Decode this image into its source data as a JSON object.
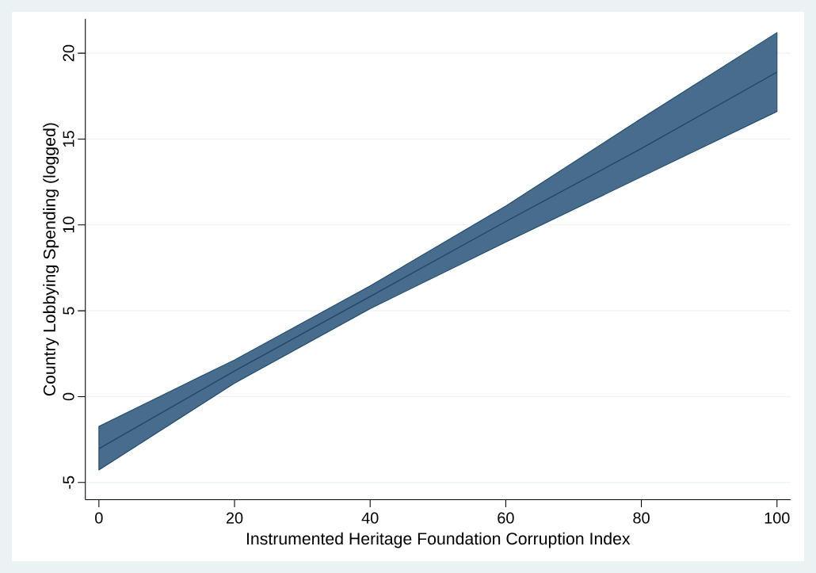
{
  "chart_data": {
    "type": "line",
    "xlabel": "Instrumented Heritage Foundation Corruption Index",
    "ylabel": "Country Lobbying Spending (logged)",
    "x": [
      0,
      20,
      40,
      60,
      80,
      100
    ],
    "series": [
      {
        "color": "#1a476f",
        "values": [
          -3.03,
          1.49,
          5.83,
          10.2,
          14.45,
          18.9
        ],
        "lower": [
          -4.27,
          0.78,
          5.12,
          9.0,
          12.8,
          16.6
        ],
        "upper": [
          -1.73,
          2.14,
          6.45,
          11.1,
          16.2,
          21.2
        ]
      }
    ],
    "xlim": [
      -2,
      102
    ],
    "ylim": [
      -6,
      22
    ],
    "xticks": [
      0,
      20,
      40,
      60,
      80,
      100
    ],
    "yticks": [
      -5,
      0,
      5,
      10,
      15,
      20
    ],
    "grid": "y",
    "marker": "none",
    "line_style": "solid"
  }
}
